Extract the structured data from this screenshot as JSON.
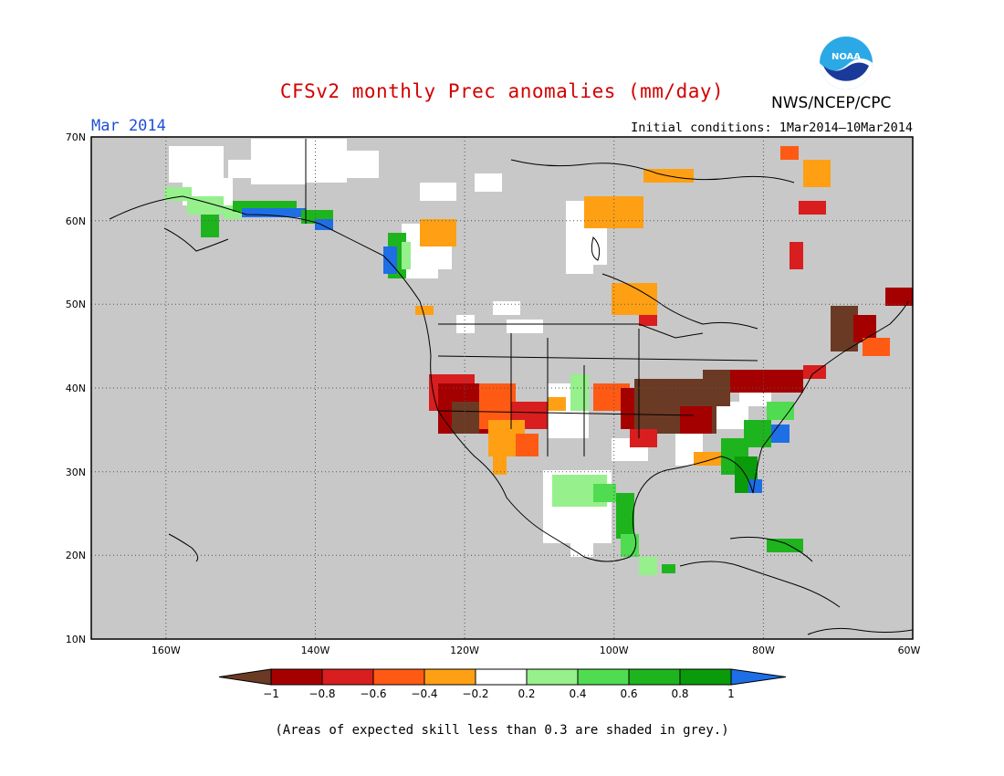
{
  "header": {
    "title": "CFSv2 monthly Prec anomalies (mm/day)",
    "period": "Mar 2014",
    "initial_conditions": "Initial conditions: 1Mar2014–10Mar2014",
    "agency": "NWS/NCEP/CPC",
    "logo_text": "NOAA"
  },
  "axes": {
    "lat_labels": [
      "70N",
      "60N",
      "50N",
      "40N",
      "30N",
      "20N",
      "10N"
    ],
    "lon_labels": [
      "160W",
      "140W",
      "120W",
      "100W",
      "80W",
      "60W"
    ],
    "lat_range": [
      10,
      70
    ],
    "lon_range": [
      -170,
      -60
    ],
    "grid": "dotted"
  },
  "colorbar": {
    "tick_labels": [
      "−1",
      "−0.8",
      "−0.6",
      "−0.4",
      "−0.2",
      "0.2",
      "0.4",
      "0.6",
      "0.8",
      "1"
    ],
    "colors": [
      "#6b3a24",
      "#a50000",
      "#d81e1e",
      "#ff5a14",
      "#ffa014",
      "#ffffff",
      "#96f08c",
      "#50dc50",
      "#1eb41e",
      "#0a9b0a",
      "#1e6ee6"
    ]
  },
  "footnote": "(Areas of expected skill less than 0.3 are shaded in grey.)",
  "colors": {
    "title": "#d40000",
    "period": "#1f4fd8",
    "low_skill_grey": "#c8c8c8"
  }
}
